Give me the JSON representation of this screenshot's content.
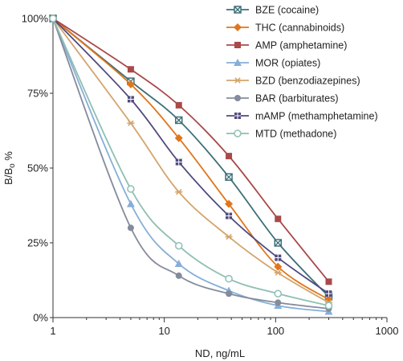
{
  "chart_data": {
    "type": "line",
    "xlabel": "ND, ng/mL",
    "ylabel_main": "B/B",
    "ylabel_sub": "o",
    "ylabel_suffix": " %",
    "x_scale": "log",
    "xlim": [
      1,
      1000
    ],
    "ylim": [
      0,
      100
    ],
    "x_ticks": [
      1,
      10,
      100,
      1000
    ],
    "x_tick_labels": [
      "1",
      "10",
      "100",
      "1000"
    ],
    "y_ticks": [
      0,
      25,
      50,
      75,
      100
    ],
    "y_tick_labels": [
      "0%",
      "25%",
      "50%",
      "75%",
      "100%"
    ],
    "grid": false,
    "legend_position": "top-right",
    "x": [
      1,
      5,
      13.5,
      38,
      105,
      300
    ],
    "series": [
      {
        "name": "BZE (cocaine)",
        "color": "#3e6f78",
        "marker": "x-square",
        "values": [
          100,
          79,
          66,
          47,
          25,
          7
        ]
      },
      {
        "name": "THC (cannabinoids)",
        "color": "#e0761c",
        "marker": "diamond",
        "values": [
          100,
          78,
          60,
          38,
          17,
          6
        ]
      },
      {
        "name": "AMP (amphetamine)",
        "color": "#a94949",
        "marker": "square",
        "values": [
          100,
          83,
          71,
          54,
          33,
          12
        ]
      },
      {
        "name": "MOR (opiates)",
        "color": "#86aed8",
        "marker": "triangle",
        "values": [
          100,
          38,
          18,
          9,
          4,
          2
        ]
      },
      {
        "name": "BZD (benzodiazepines)",
        "color": "#d4a56d",
        "marker": "asterisk",
        "values": [
          100,
          65,
          42,
          27,
          15,
          5
        ]
      },
      {
        "name": "BAR (barbiturates)",
        "color": "#848b9c",
        "marker": "circle",
        "values": [
          100,
          30,
          14,
          8,
          5,
          3
        ]
      },
      {
        "name": "mAMP (methamphetamine)",
        "color": "#4e4a7e",
        "marker": "grid-square",
        "values": [
          100,
          73,
          52,
          34,
          20,
          8
        ]
      },
      {
        "name": "MTD (methadone)",
        "color": "#8fbfb3",
        "marker": "open-circle",
        "values": [
          100,
          43,
          24,
          13,
          8,
          4
        ]
      }
    ]
  }
}
